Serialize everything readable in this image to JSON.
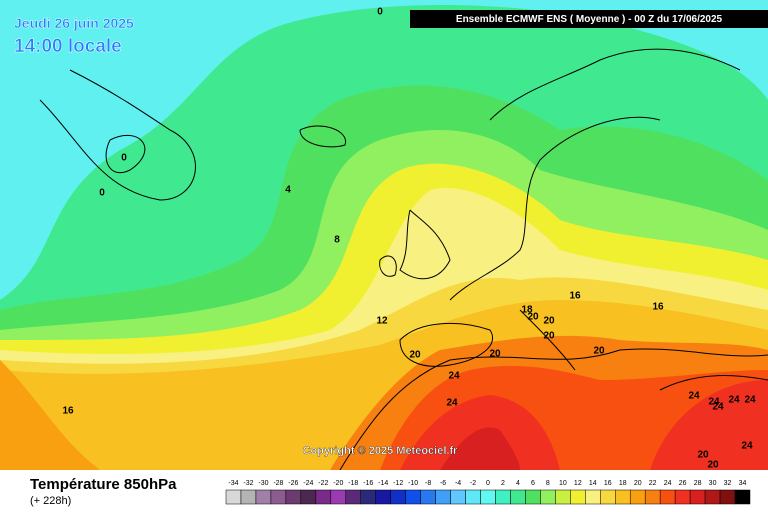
{
  "header": {
    "date": "Jeudi 26 juin 2025",
    "time": "14:00 locale",
    "model": "Ensemble ECMWF ENS  ( Moyenne )  -  00 Z du 17/06/2025"
  },
  "copyright": "Copyright © 2025 Meteociel.fr",
  "footer": {
    "title": "Température 850hPa",
    "lead": "(+ 228h)"
  },
  "contour_labels": [
    0,
    0,
    0,
    4,
    8,
    12,
    16,
    18,
    20,
    20,
    20,
    16,
    20,
    20,
    20,
    24,
    24,
    16,
    24,
    24,
    24,
    24,
    24,
    20,
    20,
    24
  ],
  "legend": {
    "labels": [
      -34,
      -32,
      -30,
      -28,
      -26,
      -24,
      -22,
      -20,
      -18,
      -16,
      -14,
      -12,
      -10,
      -8,
      -6,
      -4,
      -2,
      0,
      2,
      4,
      6,
      8,
      10,
      12,
      14,
      16,
      18,
      20,
      22,
      24,
      26,
      28,
      30,
      32,
      34
    ],
    "colors": [
      "#d8d8d8",
      "#b4b4b4",
      "#a080a8",
      "#8c5c90",
      "#6c3c70",
      "#4c2850",
      "#7a2a8a",
      "#9a3cb0",
      "#5a2a78",
      "#2a2a7a",
      "#1818a0",
      "#1030c8",
      "#1050e8",
      "#2878f0",
      "#40a0f8",
      "#60c8fc",
      "#60e8f8",
      "#60f8f0",
      "#40f0c0",
      "#40e890",
      "#50e060",
      "#90f060",
      "#c8f040",
      "#f0f030",
      "#f8f080",
      "#f8d840",
      "#f8c020",
      "#f8a010",
      "#f88010",
      "#f85010",
      "#f03020",
      "#d82020",
      "#b01818",
      "#801010",
      "#000000"
    ]
  }
}
